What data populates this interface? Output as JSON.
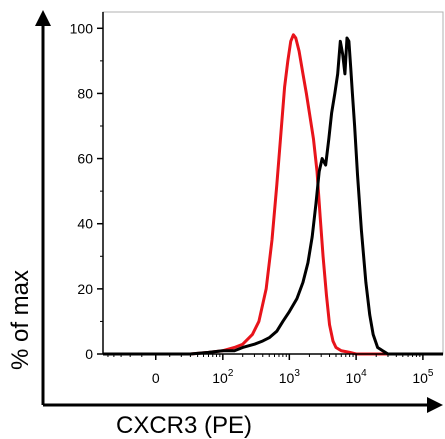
{
  "chart_data": {
    "type": "line",
    "title": "",
    "xlabel": "CXCR3 (PE)",
    "ylabel": "% of max",
    "x_scale": "biexponential",
    "xlim": [
      -60,
      200000
    ],
    "ylim": [
      0,
      105
    ],
    "x_ticks": [
      0,
      100,
      1000,
      10000,
      100000
    ],
    "x_tick_labels": [
      {
        "base": "0",
        "exp": ""
      },
      {
        "base": "10",
        "exp": "2"
      },
      {
        "base": "10",
        "exp": "3"
      },
      {
        "base": "10",
        "exp": "4"
      },
      {
        "base": "10",
        "exp": "5"
      }
    ],
    "y_ticks": [
      0,
      20,
      40,
      60,
      80,
      100
    ],
    "y_tick_labels": [
      "0",
      "20",
      "40",
      "60",
      "80",
      "100"
    ],
    "grid": false,
    "legend": "none",
    "series": [
      {
        "color": "#e8141b",
        "x": [
          -60,
          -30,
          0,
          30,
          60,
          100,
          150,
          200,
          280,
          350,
          450,
          550,
          650,
          750,
          850,
          950,
          1050,
          1150,
          1250,
          1400,
          1600,
          1800,
          2000,
          2300,
          2600,
          2900,
          3200,
          3600,
          4000,
          4500,
          5000,
          6000,
          8000,
          10000,
          30000,
          200000
        ],
        "y": [
          0,
          0,
          0,
          0,
          0.5,
          1,
          2,
          3,
          6,
          10,
          20,
          35,
          52,
          68,
          82,
          90,
          96,
          98,
          97,
          93,
          86,
          80,
          74,
          66,
          56,
          42,
          30,
          18,
          9,
          4,
          2,
          1,
          0.5,
          0,
          0,
          0
        ]
      },
      {
        "color": "#000000",
        "x": [
          -60,
          -30,
          0,
          30,
          60,
          100,
          150,
          200,
          300,
          400,
          500,
          650,
          800,
          1000,
          1300,
          1600,
          1900,
          2200,
          2500,
          2800,
          3100,
          3500,
          3900,
          4300,
          4800,
          5300,
          5800,
          6300,
          6800,
          7300,
          7800,
          8300,
          8800,
          9500,
          10500,
          12000,
          14000,
          16000,
          18000,
          21000,
          25000,
          30000,
          40000,
          200000
        ],
        "y": [
          0,
          0,
          0,
          0,
          0.5,
          1,
          1,
          2,
          3,
          4,
          5,
          7,
          10,
          13,
          17,
          22,
          28,
          36,
          46,
          56,
          60,
          58,
          66,
          74,
          80,
          86,
          96,
          92,
          86,
          97,
          96,
          88,
          80,
          70,
          55,
          38,
          22,
          12,
          6,
          2,
          1,
          0,
          0,
          0
        ]
      }
    ]
  }
}
